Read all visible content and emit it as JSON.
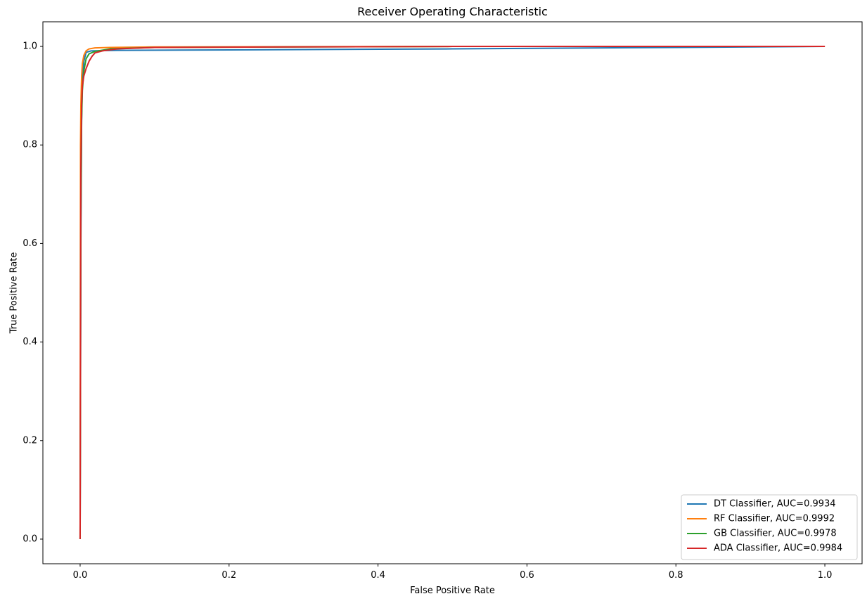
{
  "chart_data": {
    "type": "line",
    "title": "Receiver Operating Characteristic",
    "xlabel": "False Positive Rate",
    "ylabel": "True Positive Rate",
    "xlim": [
      -0.05,
      1.05
    ],
    "ylim": [
      -0.05,
      1.05
    ],
    "xticks": [
      0.0,
      0.2,
      0.4,
      0.6,
      0.8,
      1.0
    ],
    "yticks": [
      0.0,
      0.2,
      0.4,
      0.6,
      0.8,
      1.0
    ],
    "xtick_labels": [
      "0.0",
      "0.2",
      "0.4",
      "0.6",
      "0.8",
      "1.0"
    ],
    "ytick_labels": [
      "0.0",
      "0.2",
      "0.4",
      "0.6",
      "0.8",
      "1.0"
    ],
    "grid": false,
    "legend_position": "lower-right",
    "series": [
      {
        "name": "DT Classifier, AUC=0.9934",
        "color": "#1f77b4",
        "x": [
          0.0,
          0.001,
          0.002,
          0.003,
          0.005,
          0.008,
          0.015,
          0.05,
          0.2,
          0.5,
          0.8,
          1.0
        ],
        "y": [
          0.0,
          0.6,
          0.85,
          0.93,
          0.97,
          0.988,
          0.991,
          0.992,
          0.993,
          0.995,
          0.998,
          1.0
        ]
      },
      {
        "name": "RF Classifier, AUC=0.9992",
        "color": "#ff7f0e",
        "x": [
          0.0,
          0.0005,
          0.001,
          0.002,
          0.003,
          0.005,
          0.008,
          0.012,
          0.02,
          0.04,
          0.1,
          0.5,
          1.0
        ],
        "y": [
          0.0,
          0.8,
          0.88,
          0.94,
          0.965,
          0.982,
          0.991,
          0.995,
          0.997,
          0.998,
          0.999,
          1.0,
          1.0
        ]
      },
      {
        "name": "GB Classifier, AUC=0.9978",
        "color": "#2ca02c",
        "x": [
          0.0,
          0.001,
          0.002,
          0.003,
          0.005,
          0.008,
          0.012,
          0.02,
          0.04,
          0.1,
          0.5,
          1.0
        ],
        "y": [
          0.0,
          0.65,
          0.85,
          0.91,
          0.95,
          0.975,
          0.985,
          0.99,
          0.995,
          0.998,
          1.0,
          1.0
        ]
      },
      {
        "name": "ADA Classifier, AUC=0.9984",
        "color": "#d62728",
        "x": [
          0.0,
          0.001,
          0.002,
          0.003,
          0.005,
          0.008,
          0.012,
          0.016,
          0.02,
          0.03,
          0.05,
          0.1,
          0.5,
          1.0
        ],
        "y": [
          0.0,
          0.75,
          0.88,
          0.92,
          0.94,
          0.955,
          0.97,
          0.98,
          0.987,
          0.991,
          0.995,
          0.998,
          1.0,
          1.0
        ]
      }
    ]
  }
}
